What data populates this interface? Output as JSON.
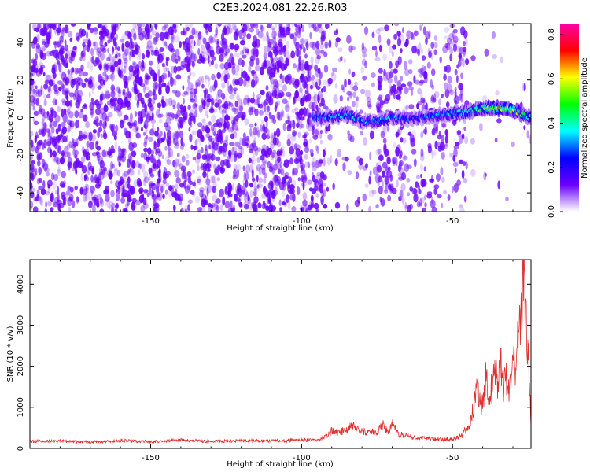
{
  "title": "C2E3.2024.081.22.26.R03",
  "colors": {
    "snr_line": "#e03030",
    "spectrogram_noise": "#6a00ff",
    "colormap": [
      "#ffffff",
      "#6a00ff",
      "#0000ff",
      "#00ffff",
      "#00ff00",
      "#ffff00",
      "#ff0000",
      "#ff00aa"
    ]
  },
  "chart_data": [
    {
      "type": "heatmap",
      "xlabel": "Height of straight line (km)",
      "ylabel": "Frequency (Hz)",
      "xlim": [
        -190,
        -24
      ],
      "ylim": [
        -50,
        50
      ],
      "x_ticks": [
        -150,
        -100,
        -50
      ],
      "x_tick_labels": [
        "-150",
        "-100",
        "-50"
      ],
      "y_ticks": [
        -40,
        -20,
        0,
        20,
        40
      ],
      "y_tick_labels": [
        "-40",
        "-20",
        "0",
        "20",
        "40"
      ],
      "colorbar": {
        "label": "Normalized spectral amplitude",
        "range": [
          0,
          0.85
        ],
        "ticks": [
          0.0,
          0.2,
          0.4,
          0.6,
          0.8
        ],
        "tick_labels": [
          "0.0",
          "0.2",
          "0.4",
          "0.6",
          "0.8"
        ]
      },
      "noise_regions": [
        {
          "x_range": [
            -190,
            -92
          ],
          "density": 1.0
        },
        {
          "x_range": [
            -92,
            -75
          ],
          "density": 0.25
        },
        {
          "x_range": [
            -75,
            -55
          ],
          "density": 0.6
        },
        {
          "x_range": [
            -55,
            -45
          ],
          "density": 0.45
        },
        {
          "x_range": [
            -45,
            -24
          ],
          "density": 0.05
        }
      ],
      "signal_band": {
        "x": [
          -96,
          -90,
          -85,
          -80,
          -75,
          -70,
          -65,
          -60,
          -55,
          -50,
          -45,
          -40,
          -35,
          -30,
          -27,
          -24
        ],
        "frequency_center": [
          0,
          0,
          2,
          -2,
          -2,
          0,
          -1,
          0,
          1,
          2,
          3,
          5,
          5,
          4,
          2,
          0
        ],
        "amplitude": [
          0.3,
          0.35,
          0.4,
          0.35,
          0.4,
          0.35,
          0.3,
          0.3,
          0.35,
          0.4,
          0.45,
          0.55,
          0.7,
          0.65,
          0.5,
          0.45
        ]
      }
    },
    {
      "type": "line",
      "xlabel": "Height of straight line (km)",
      "ylabel": "SNR (10 * v/v)",
      "xlim": [
        -190,
        -24
      ],
      "ylim": [
        0,
        4600
      ],
      "x_ticks": [
        -150,
        -100,
        -50
      ],
      "x_tick_labels": [
        "-150",
        "-100",
        "-50"
      ],
      "y_ticks": [
        0,
        1000,
        2000,
        3000,
        4000
      ],
      "y_tick_labels": [
        "0",
        "1000",
        "2000",
        "3000",
        "4000"
      ],
      "series": [
        {
          "x": [
            -190,
            -180,
            -170,
            -160,
            -150,
            -140,
            -130,
            -120,
            -110,
            -100,
            -95,
            -92,
            -90,
            -88,
            -85,
            -83,
            -80,
            -78,
            -75,
            -73,
            -71,
            -70,
            -68,
            -65,
            -62,
            -60,
            -57,
            -55,
            -50,
            -47,
            -44,
            -43,
            -42,
            -41,
            -40,
            -39,
            -38,
            -37,
            -36,
            -35,
            -34,
            -33,
            -32,
            -31,
            -30,
            -29,
            -28,
            -27.5,
            -27,
            -26.5,
            -26,
            -25,
            -24
          ],
          "y": [
            170,
            180,
            150,
            190,
            160,
            200,
            170,
            190,
            180,
            210,
            200,
            280,
            420,
            380,
            450,
            560,
            430,
            390,
            400,
            560,
            360,
            620,
            350,
            300,
            260,
            250,
            230,
            220,
            230,
            300,
            650,
            1100,
            1350,
            1200,
            1000,
            1700,
            1300,
            1500,
            1900,
            1600,
            2000,
            1500,
            1800,
            1400,
            2500,
            1700,
            3200,
            2600,
            3700,
            4500,
            3200,
            2600,
            500
          ]
        }
      ]
    }
  ]
}
